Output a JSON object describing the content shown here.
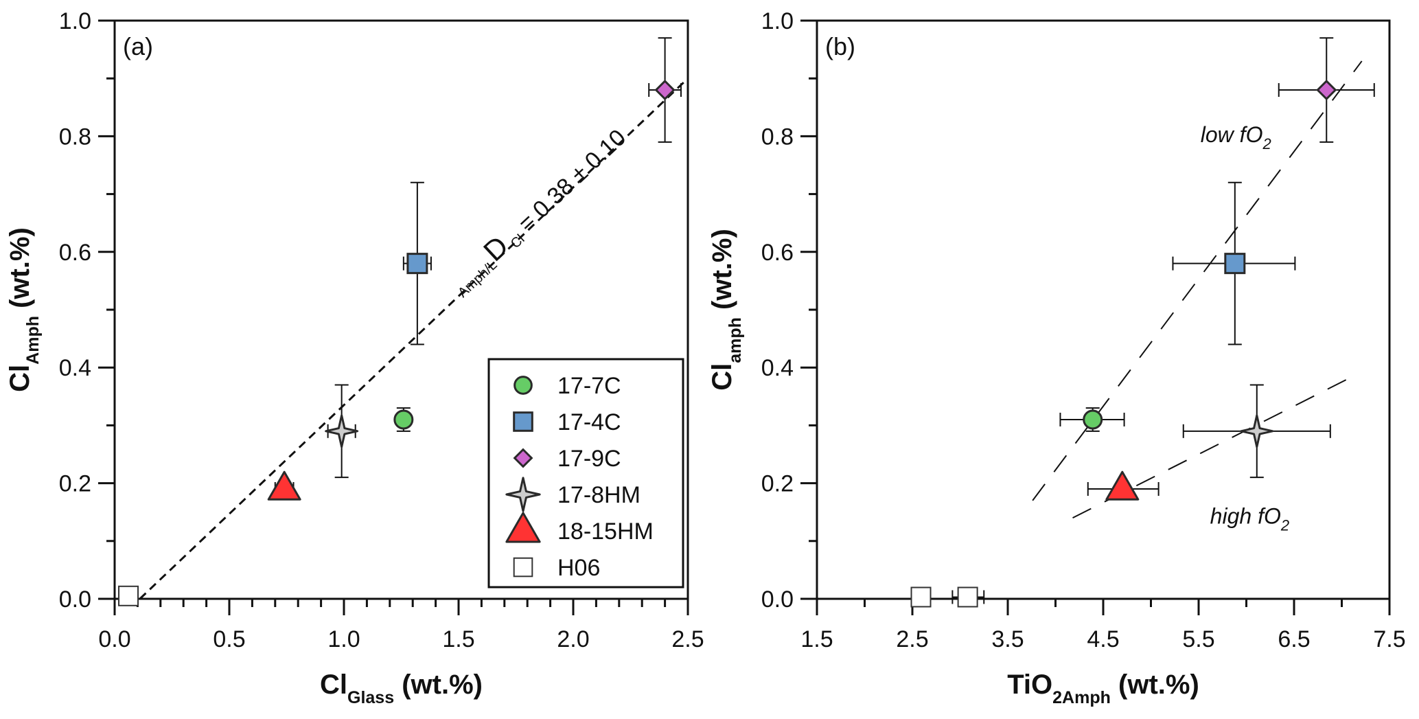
{
  "chart_data": [
    {
      "type": "scatter",
      "panel_label": "(a)",
      "xlabel": {
        "main": "Cl",
        "sub": "Glass",
        "unit": " (wt.%)"
      },
      "ylabel": {
        "main": "Cl",
        "sub": "Amph",
        "unit": " (wt.%)"
      },
      "xlim": [
        0.0,
        2.5
      ],
      "ylim": [
        0.0,
        1.0
      ],
      "xticks": [
        0.0,
        0.5,
        1.0,
        1.5,
        2.0,
        2.5
      ],
      "xtick_labels": [
        "0.0",
        "0.5",
        "1.0",
        "1.5",
        "2.0",
        "2.5"
      ],
      "xminor_step": 0.1,
      "yticks": [
        0.0,
        0.2,
        0.4,
        0.6,
        0.8,
        1.0
      ],
      "ytick_labels": [
        "0.0",
        "0.2",
        "0.4",
        "0.6",
        "0.8",
        "1.0"
      ],
      "yminor_step": 0.1,
      "grid": false,
      "series": [
        {
          "name": "17-7C",
          "marker": "circle",
          "color": "#66cc66",
          "points": [
            {
              "x": 1.26,
              "y": 0.31,
              "xerr": [
                1.26,
                1.26
              ],
              "yerr": [
                0.29,
                0.33
              ]
            }
          ]
        },
        {
          "name": "17-4C",
          "marker": "square",
          "color": "#6699cc",
          "points": [
            {
              "x": 1.32,
              "y": 0.58,
              "xerr": [
                1.26,
                1.38
              ],
              "yerr": [
                0.44,
                0.72
              ]
            }
          ]
        },
        {
          "name": "17-9C",
          "marker": "diamond",
          "color": "#cc66cc",
          "points": [
            {
              "x": 2.4,
              "y": 0.88,
              "xerr": [
                2.33,
                2.47
              ],
              "yerr": [
                0.79,
                0.97
              ]
            }
          ]
        },
        {
          "name": "17-8HM",
          "marker": "star4",
          "color": "#cccccc",
          "points": [
            {
              "x": 0.99,
              "y": 0.29,
              "xerr": [
                0.93,
                1.05
              ],
              "yerr": [
                0.21,
                0.37
              ]
            }
          ]
        },
        {
          "name": "18-15HM",
          "marker": "triangle",
          "color": "#ff3333",
          "points": [
            {
              "x": 0.74,
              "y": 0.19,
              "xerr": [
                0.7,
                0.78
              ],
              "yerr": [
                0.18,
                0.2
              ]
            }
          ]
        },
        {
          "name": "H06",
          "marker": "square-open",
          "color": "#ffffff",
          "points": [
            {
              "x": 0.06,
              "y": 0.005
            }
          ]
        }
      ],
      "lines": [
        {
          "name": "partition-line",
          "style": "dashed-short",
          "from": [
            0.11,
            0.0
          ],
          "to": [
            2.5,
            0.9
          ]
        }
      ],
      "annotations": [
        {
          "name": "partition-coefficient",
          "prefix": "Amph/L",
          "main": "D",
          "sub": "Cl",
          "value": " = 0.38 ± 0.10",
          "x": 1.52,
          "y": 0.52,
          "angle_deg": -43
        }
      ],
      "legend": {
        "placement": "bottom-right",
        "entries": [
          "17-7C",
          "17-4C",
          "17-9C",
          "17-8HM",
          "18-15HM",
          "H06"
        ]
      }
    },
    {
      "type": "scatter",
      "panel_label": "(b)",
      "xlabel": {
        "main": "TiO",
        "sub": "2Amph",
        "unit": " (wt.%)"
      },
      "ylabel": {
        "main": "Cl",
        "sub": "amph",
        "unit": " (wt.%)"
      },
      "xlim": [
        1.5,
        7.5
      ],
      "ylim": [
        0.0,
        1.0
      ],
      "xticks": [
        1.5,
        2.5,
        3.5,
        4.5,
        5.5,
        6.5,
        7.5
      ],
      "xtick_labels": [
        "1.5",
        "2.5",
        "3.5",
        "4.5",
        "5.5",
        "6.5",
        "7.5"
      ],
      "xminor_step": 0.5,
      "yticks": [
        0.0,
        0.2,
        0.4,
        0.6,
        0.8,
        1.0
      ],
      "ytick_labels": [
        "0.0",
        "0.2",
        "0.4",
        "0.6",
        "0.8",
        "1.0"
      ],
      "yminor_step": 0.1,
      "grid": false,
      "series": [
        {
          "name": "17-7C",
          "marker": "circle",
          "color": "#66cc66",
          "points": [
            {
              "x": 4.39,
              "y": 0.31,
              "xerr": [
                4.05,
                4.72
              ],
              "yerr": [
                0.29,
                0.33
              ]
            }
          ]
        },
        {
          "name": "17-4C",
          "marker": "square",
          "color": "#6699cc",
          "points": [
            {
              "x": 5.88,
              "y": 0.58,
              "xerr": [
                5.23,
                6.51
              ],
              "yerr": [
                0.44,
                0.72
              ]
            }
          ]
        },
        {
          "name": "17-9C",
          "marker": "diamond",
          "color": "#cc66cc",
          "points": [
            {
              "x": 6.84,
              "y": 0.88,
              "xerr": [
                6.34,
                7.34
              ],
              "yerr": [
                0.79,
                0.97
              ]
            }
          ]
        },
        {
          "name": "17-8HM",
          "marker": "star4",
          "color": "#cccccc",
          "points": [
            {
              "x": 6.11,
              "y": 0.29,
              "xerr": [
                5.34,
                6.88
              ],
              "yerr": [
                0.21,
                0.37
              ]
            }
          ]
        },
        {
          "name": "18-15HM",
          "marker": "triangle",
          "color": "#ff3333",
          "points": [
            {
              "x": 4.7,
              "y": 0.19,
              "xerr": [
                4.34,
                5.08
              ],
              "yerr": [
                0.18,
                0.2
              ]
            }
          ]
        },
        {
          "name": "H06",
          "marker": "square-open",
          "color": "#ffffff",
          "points": [
            {
              "x": 2.59,
              "y": 0.003
            },
            {
              "x": 3.08,
              "y": 0.003,
              "xerr": [
                2.92,
                3.25
              ]
            }
          ]
        }
      ],
      "lines": [
        {
          "name": "low-fo2-trend",
          "style": "dashed-long",
          "from": [
            3.76,
            0.17
          ],
          "to": [
            7.21,
            0.93
          ]
        },
        {
          "name": "high-fo2-trend",
          "style": "dashed-long",
          "from": [
            4.18,
            0.14
          ],
          "to": [
            7.18,
            0.39
          ]
        }
      ],
      "annotations": [
        {
          "name": "low-fo2-label",
          "main": "low fO",
          "sub": "2",
          "x": 5.52,
          "y": 0.79
        },
        {
          "name": "high-fo2-label",
          "main": "high fO",
          "sub": "2",
          "x": 5.62,
          "y": 0.13
        }
      ]
    }
  ]
}
